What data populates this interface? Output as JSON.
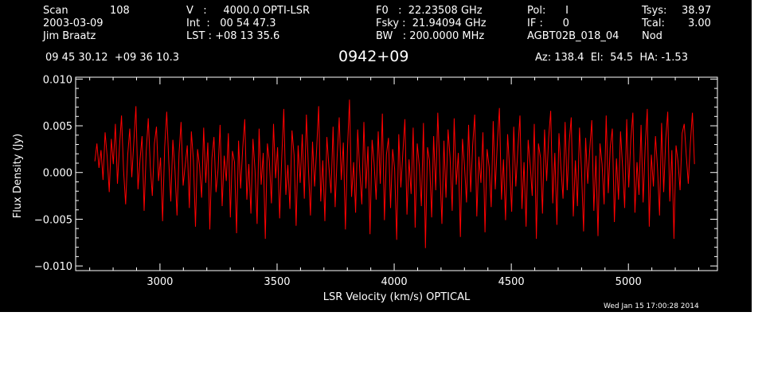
{
  "header": {
    "col1": {
      "scan_label": "Scan",
      "scan_value": "108",
      "date": "2003-03-09",
      "observer": "Jim Braatz"
    },
    "col2": {
      "v_line": "V   :     4000.0 OPTI-LSR",
      "int_line": "Int  :   00 54 47.3",
      "lst_line": "LST : +08 13 35.6"
    },
    "col3": {
      "f0_line": "F0   :  22.23508 GHz",
      "fsky_line": "Fsky :  21.94094 GHz",
      "bw_line": "BW   : 200.0000 MHz"
    },
    "col4": {
      "pol_line": "Pol:      I",
      "if_line": "IF :      0",
      "project": "AGBT02B_018_04"
    },
    "col5": {
      "tsys_label": "Tsys:",
      "tsys_value": "38.97",
      "tcal_label": "Tcal:",
      "tcal_value": "3.00",
      "mode": "Nod"
    },
    "coords": "09 45 30.12  +09 36 10.3",
    "source": "0942+09",
    "azelha": "Az: 138.4  El:  54.5  HA: -1.53"
  },
  "timestamp": "Wed Jan 15 17:00:28 2014",
  "colors": {
    "background": "#000000",
    "trace": "#ff0000",
    "axes": "#ffffff"
  },
  "chart_data": {
    "type": "line",
    "xlabel": "LSR Velocity (km/s) OPTICAL",
    "ylabel": "Flux Density (Jy)",
    "xlim": [
      2640,
      5380
    ],
    "ylim": [
      -0.0105,
      0.0102
    ],
    "x_ticks": [
      3000,
      3500,
      4000,
      4500,
      5000
    ],
    "x_tick_labels": [
      "3000",
      "3500",
      "4000",
      "4500",
      "5000"
    ],
    "y_ticks": [
      -0.01,
      -0.005,
      0.0,
      0.005,
      0.01
    ],
    "y_tick_labels": [
      "−0.010",
      "−0.005",
      "0.000",
      "0.005",
      "0.010"
    ],
    "grid": false,
    "series": [
      {
        "x_start": 2722,
        "x_end": 5282,
        "baseline": 0.0,
        "values": [
          0.0012,
          0.0031,
          0.0005,
          0.0024,
          -0.0008,
          0.0043,
          0.0017,
          -0.0021,
          0.0036,
          0.0009,
          0.0052,
          -0.0012,
          0.0028,
          0.0061,
          0.0002,
          -0.0034,
          0.0019,
          0.0047,
          -0.0005,
          0.0033,
          0.0071,
          -0.0018,
          0.0014,
          0.0039,
          -0.0041,
          0.0022,
          0.0058,
          0.0006,
          -0.0025,
          0.0031,
          0.0049,
          -0.0009,
          0.0016,
          -0.0052,
          0.0027,
          0.0065,
          0.0011,
          -0.0031,
          0.0035,
          0.0003,
          -0.0046,
          0.0021,
          0.0054,
          -0.0014,
          0.0008,
          0.0029,
          -0.0038,
          0.0044,
          0.0013,
          -0.0058,
          0.0025,
          0.0007,
          -0.0027,
          0.0048,
          -0.0011,
          0.0032,
          -0.0061,
          0.0015,
          0.0038,
          -0.0021,
          0.0004,
          0.0051,
          -0.0036,
          0.0018,
          -0.0009,
          0.0042,
          -0.0048,
          0.0023,
          0.0011,
          -0.0065,
          0.0034,
          -0.0017,
          0.0026,
          0.0057,
          -0.0029,
          0.0009,
          -0.0044,
          0.0036,
          0.0002,
          -0.0055,
          0.0047,
          -0.0013,
          0.0021,
          -0.0071,
          0.0031,
          0.0012,
          -0.0033,
          0.0052,
          -0.0006,
          0.0027,
          -0.0049,
          0.0015,
          0.0068,
          -0.0024,
          0.0008,
          -0.0039,
          0.0045,
          0.0019,
          -0.0057,
          0.0029,
          -0.0011,
          0.0041,
          -0.0028,
          0.0062,
          0.0005,
          -0.0046,
          0.0033,
          -0.0015,
          0.0024,
          0.0071,
          -0.0031,
          0.0013,
          -0.0052,
          0.0038,
          0.0006,
          -0.0022,
          0.0049,
          -0.0037,
          0.0017,
          0.0059,
          -0.0008,
          0.0032,
          -0.0061,
          0.0023,
          0.0078,
          -0.0026,
          0.0011,
          -0.0043,
          0.0046,
          0.0002,
          -0.0034,
          0.0054,
          -0.0017,
          0.0028,
          -0.0066,
          0.0035,
          0.0009,
          -0.0029,
          0.0044,
          -0.0012,
          0.0063,
          -0.0051,
          0.0019,
          0.0037,
          -0.0038,
          0.0025,
          0.0004,
          -0.0072,
          0.0041,
          -0.0016,
          0.0022,
          0.0057,
          -0.0045,
          0.0014,
          -0.0023,
          0.0048,
          -0.0059,
          0.0031,
          0.0007,
          -0.0036,
          0.0053,
          -0.0081,
          0.0027,
          0.0012,
          -0.0048,
          0.0039,
          -0.0019,
          0.0064,
          0.0003,
          -0.0055,
          0.0034,
          -0.0027,
          0.0046,
          0.0015,
          -0.0041,
          0.0058,
          -0.0013,
          0.0021,
          -0.0069,
          0.0036,
          0.0008,
          -0.0032,
          0.0051,
          -0.0021,
          0.0029,
          0.0062,
          -0.0047,
          0.0017,
          -0.0011,
          0.0043,
          -0.0064,
          0.0025,
          0.0006,
          -0.0037,
          0.0055,
          -0.0018,
          0.0032,
          0.0069,
          -0.0029,
          0.0014,
          -0.0051,
          0.0041,
          0.0003,
          -0.0042,
          0.0049,
          -0.0015,
          0.0026,
          0.0061,
          -0.0039,
          0.0011,
          -0.0058,
          0.0035,
          0.0008,
          -0.0025,
          0.0052,
          -0.0071,
          0.0031,
          0.0016,
          -0.0044,
          0.0046,
          -0.0009,
          0.0038,
          0.0066,
          -0.0033,
          0.0021,
          -0.0056,
          0.0042,
          0.0005,
          -0.0028,
          0.0054,
          -0.0019,
          0.0033,
          0.0059,
          -0.0047,
          0.0013,
          -0.0036,
          0.0048,
          0.0002,
          -0.0063,
          0.0037,
          -0.0012,
          0.0024,
          0.0056,
          -0.0041,
          0.0018,
          -0.0068,
          0.0031,
          0.0009,
          -0.0034,
          0.0061,
          -0.0022,
          0.0027,
          0.0047,
          -0.0053,
          0.0015,
          -0.0029,
          0.0044,
          0.0006,
          -0.0038,
          0.0057,
          -0.0016,
          0.0035,
          0.0064,
          -0.0043,
          0.0011,
          -0.0024,
          0.0051,
          -0.0032,
          0.0028,
          0.0068,
          -0.0058,
          0.0019,
          -0.0015,
          0.0039,
          0.0004,
          -0.0046,
          0.0053,
          -0.0021,
          0.0036,
          0.0065,
          -0.0031,
          0.0024,
          -0.0071,
          0.0029,
          0.0012,
          -0.0019,
          0.0042,
          0.0052,
          0.0018,
          -0.0012,
          0.0031,
          0.0064,
          0.0009
        ]
      }
    ]
  }
}
